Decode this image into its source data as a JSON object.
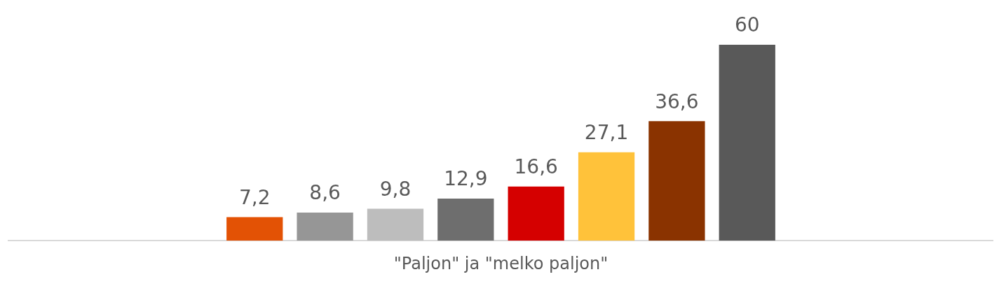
{
  "chart_data": {
    "type": "bar",
    "xlabel": "\"Paljon\" ja \"melko paljon\"",
    "categories": [
      null,
      null,
      null,
      null,
      null,
      null,
      null,
      null
    ],
    "values": [
      7.2,
      8.6,
      9.8,
      12.9,
      16.6,
      27.1,
      36.6,
      60
    ],
    "colors": [
      "#e35205",
      "#969696",
      "#bdbdbd",
      "#6e6e6e",
      "#d50000",
      "#ffc23a",
      "#8a3300",
      "#595959"
    ],
    "value_labels": [
      "7,2",
      "8,6",
      "9,8",
      "12,9",
      "16,6",
      "27,1",
      "36,6",
      "60"
    ],
    "grid": false,
    "legend": false
  }
}
